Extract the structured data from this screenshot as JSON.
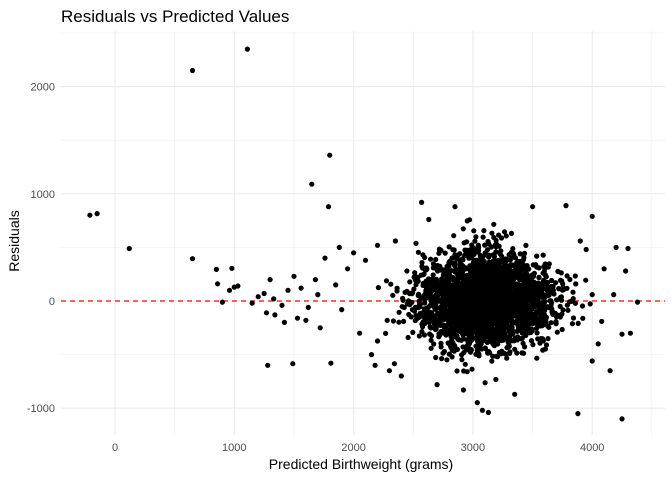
{
  "chart_data": {
    "type": "scatter",
    "title": "Residuals vs Predicted Values",
    "xlabel": "Predicted Birthweight (grams)",
    "ylabel": "Residuals",
    "xlim": [
      -400,
      4550
    ],
    "ylim": [
      -1200,
      2500
    ],
    "x_ticks": [
      0,
      1000,
      2000,
      3000,
      4000
    ],
    "y_ticks": [
      -1000,
      0,
      1000,
      2000
    ],
    "grid": true,
    "reference_line": {
      "y": 0,
      "style": "dashed",
      "color": "#ff0000"
    },
    "point_color": "#000000",
    "cluster_note_excluded": true,
    "cluster": {
      "n": 2600,
      "x_mean": 3100,
      "x_sd": 280,
      "y_mean": 0,
      "y_sd": 240,
      "x_min": 2200,
      "x_max": 4000,
      "seed": 7
    },
    "points": [
      {
        "x": -210,
        "y": 800
      },
      {
        "x": -150,
        "y": 815
      },
      {
        "x": 120,
        "y": 490
      },
      {
        "x": 650,
        "y": 2150
      },
      {
        "x": 1110,
        "y": 2350
      },
      {
        "x": 650,
        "y": 395
      },
      {
        "x": 1650,
        "y": 1090
      },
      {
        "x": 1800,
        "y": 1360
      },
      {
        "x": 1790,
        "y": 880
      },
      {
        "x": 850,
        "y": 295
      },
      {
        "x": 980,
        "y": 305
      },
      {
        "x": 860,
        "y": 160
      },
      {
        "x": 900,
        "y": -10
      },
      {
        "x": 1000,
        "y": 130
      },
      {
        "x": 1030,
        "y": 140
      },
      {
        "x": 960,
        "y": 100
      },
      {
        "x": 1150,
        "y": -20
      },
      {
        "x": 1200,
        "y": 40
      },
      {
        "x": 1250,
        "y": 70
      },
      {
        "x": 1300,
        "y": 200
      },
      {
        "x": 1330,
        "y": 20
      },
      {
        "x": 1400,
        "y": -40
      },
      {
        "x": 1450,
        "y": 100
      },
      {
        "x": 1500,
        "y": 230
      },
      {
        "x": 1530,
        "y": -160
      },
      {
        "x": 1560,
        "y": 120
      },
      {
        "x": 1620,
        "y": -60
      },
      {
        "x": 1700,
        "y": 60
      },
      {
        "x": 1760,
        "y": 400
      },
      {
        "x": 1850,
        "y": 150
      },
      {
        "x": 1880,
        "y": 500
      },
      {
        "x": 1900,
        "y": -80
      },
      {
        "x": 1950,
        "y": 300
      },
      {
        "x": 1280,
        "y": -600
      },
      {
        "x": 1490,
        "y": -585
      },
      {
        "x": 1810,
        "y": -580
      },
      {
        "x": 1270,
        "y": -110
      },
      {
        "x": 1340,
        "y": -130
      },
      {
        "x": 1420,
        "y": -200
      },
      {
        "x": 1600,
        "y": -180
      },
      {
        "x": 1680,
        "y": 200
      },
      {
        "x": 1720,
        "y": -250
      },
      {
        "x": 2000,
        "y": 450
      },
      {
        "x": 2050,
        "y": -300
      },
      {
        "x": 2100,
        "y": 380
      },
      {
        "x": 2150,
        "y": -500
      },
      {
        "x": 2200,
        "y": 520
      },
      {
        "x": 2180,
        "y": -600
      },
      {
        "x": 2300,
        "y": -650
      },
      {
        "x": 2350,
        "y": 560
      },
      {
        "x": 2400,
        "y": -700
      },
      {
        "x": 2570,
        "y": 920
      },
      {
        "x": 2630,
        "y": 760
      },
      {
        "x": 2700,
        "y": -780
      },
      {
        "x": 2850,
        "y": 880
      },
      {
        "x": 2920,
        "y": -830
      },
      {
        "x": 3080,
        "y": -1020
      },
      {
        "x": 3130,
        "y": -1040
      },
      {
        "x": 3350,
        "y": -870
      },
      {
        "x": 3500,
        "y": 880
      },
      {
        "x": 3780,
        "y": 890
      },
      {
        "x": 3880,
        "y": -1050
      },
      {
        "x": 4000,
        "y": 790
      },
      {
        "x": 3900,
        "y": 560
      },
      {
        "x": 3950,
        "y": 480
      },
      {
        "x": 4050,
        "y": -400
      },
      {
        "x": 4100,
        "y": 300
      },
      {
        "x": 4150,
        "y": -650
      },
      {
        "x": 4200,
        "y": 500
      },
      {
        "x": 4250,
        "y": -1100
      },
      {
        "x": 4250,
        "y": -310
      },
      {
        "x": 4280,
        "y": 280
      },
      {
        "x": 4300,
        "y": 490
      },
      {
        "x": 4320,
        "y": -300
      },
      {
        "x": 4380,
        "y": -10
      },
      {
        "x": 4080,
        "y": -190
      },
      {
        "x": 4180,
        "y": 60
      },
      {
        "x": 4000,
        "y": -560
      }
    ]
  }
}
